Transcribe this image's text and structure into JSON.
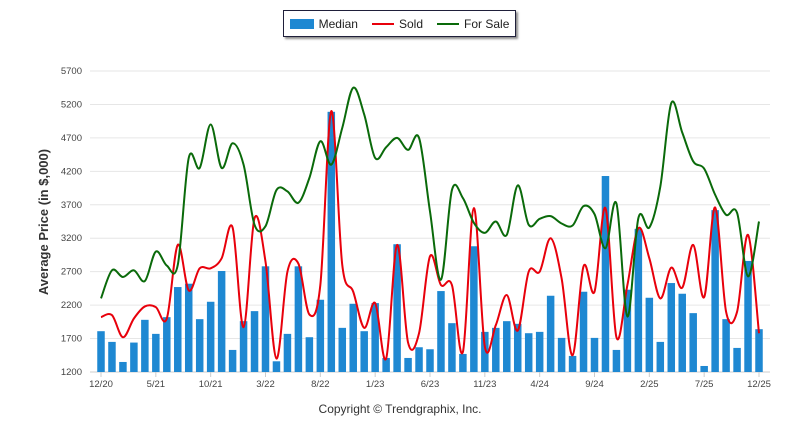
{
  "chart_data": {
    "type": "bar",
    "title": "",
    "xlabel": "",
    "ylabel": "Average Price (in $,000)",
    "ylim": [
      1200,
      5700
    ],
    "yticks": [
      1200,
      1700,
      2200,
      2700,
      3200,
      3700,
      4200,
      4700,
      5200,
      5700
    ],
    "grid": true,
    "legend_position": "top-center",
    "xtick_labels": [
      "12/20",
      "5/21",
      "10/21",
      "3/22",
      "8/22",
      "1/23",
      "6/23",
      "11/23",
      "4/24",
      "9/24",
      "2/25",
      "7/25",
      "12/25"
    ],
    "categories": [
      "12/20",
      "1/21",
      "2/21",
      "3/21",
      "4/21",
      "5/21",
      "6/21",
      "7/21",
      "8/21",
      "9/21",
      "10/21",
      "11/21",
      "12/21",
      "1/22",
      "2/22",
      "3/22",
      "4/22",
      "5/22",
      "6/22",
      "7/22",
      "8/22",
      "9/22",
      "10/22",
      "11/22",
      "12/22",
      "1/23",
      "2/23",
      "3/23",
      "4/23",
      "5/23",
      "6/23",
      "7/23",
      "8/23",
      "9/23",
      "10/23",
      "11/23",
      "12/23",
      "1/24",
      "2/24",
      "3/24",
      "4/24",
      "5/24",
      "6/24",
      "7/24",
      "8/24",
      "9/24",
      "10/24",
      "11/24",
      "12/24",
      "1/25",
      "2/25",
      "3/25",
      "4/25",
      "5/25",
      "6/25",
      "7/25",
      "8/25",
      "9/25",
      "10/25",
      "11/25",
      "12/25"
    ],
    "series": [
      {
        "name": "Median",
        "kind": "bar",
        "color": "#1e88d2",
        "values": [
          1810,
          1650,
          1350,
          1640,
          1980,
          1770,
          2020,
          2470,
          2520,
          1990,
          2250,
          2710,
          1530,
          1960,
          2110,
          2780,
          1360,
          1770,
          2780,
          1720,
          2280,
          5090,
          1860,
          2220,
          1810,
          2230,
          1410,
          3110,
          1410,
          1570,
          1540,
          2410,
          1930,
          1470,
          3080,
          1800,
          1860,
          1960,
          1920,
          1780,
          1800,
          2340,
          1710,
          1440,
          2400,
          1710,
          4130,
          1530,
          2430,
          3340,
          2310,
          1650,
          2530,
          2370,
          2080,
          1290,
          3620,
          1990,
          1560,
          2860,
          1840
        ]
      },
      {
        "name": "Sold",
        "kind": "line",
        "color": "#e8000b",
        "values": [
          2020,
          2050,
          1720,
          2000,
          2180,
          2170,
          2000,
          3100,
          2420,
          2750,
          2750,
          2900,
          3360,
          1870,
          3500,
          2850,
          1400,
          2700,
          2820,
          2060,
          2500,
          5100,
          2800,
          2400,
          1860,
          2230,
          1400,
          3100,
          1640,
          1780,
          2930,
          2500,
          2500,
          1500,
          3650,
          1580,
          1900,
          2350,
          1820,
          2700,
          2700,
          3200,
          2600,
          1450,
          2780,
          2400,
          3650,
          1720,
          2500,
          3350,
          2900,
          2300,
          2760,
          2460,
          3100,
          2320,
          3660,
          2100,
          2100,
          3250,
          1780
        ]
      },
      {
        "name": "For Sale",
        "kind": "line",
        "color": "#0a6a0a",
        "values": [
          2300,
          2720,
          2620,
          2720,
          2560,
          3000,
          2790,
          2800,
          4400,
          4250,
          4900,
          4250,
          4620,
          4300,
          3400,
          3380,
          3920,
          3900,
          3730,
          4100,
          4650,
          4300,
          4850,
          5450,
          5050,
          4400,
          4560,
          4700,
          4520,
          4700,
          3600,
          2580,
          3920,
          3800,
          3430,
          3280,
          3450,
          3250,
          3990,
          3400,
          3490,
          3530,
          3420,
          3390,
          3680,
          3560,
          3050,
          3720,
          2030,
          3500,
          3360,
          3970,
          5220,
          4780,
          4350,
          4240,
          3850,
          3550,
          3580,
          2630,
          3450
        ]
      }
    ]
  },
  "legend": {
    "items": [
      {
        "label": "Median",
        "color": "#1e88d2",
        "kind": "bar"
      },
      {
        "label": "Sold",
        "color": "#e8000b",
        "kind": "line"
      },
      {
        "label": "For Sale",
        "color": "#0a6a0a",
        "kind": "line"
      }
    ]
  },
  "footer": {
    "copyright": "Copyright © Trendgraphix, Inc."
  }
}
